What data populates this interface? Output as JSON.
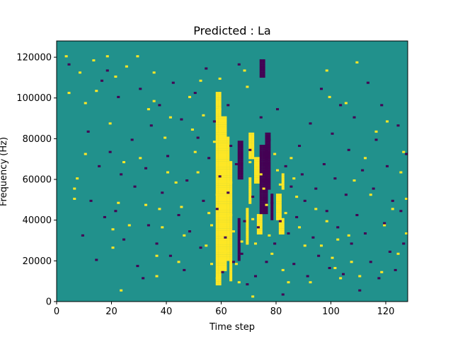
{
  "chart_data": {
    "type": "heatmap",
    "title": "Predicted : La",
    "xlabel": "Time step",
    "ylabel": "Frequency (Hz)",
    "xlim": [
      0,
      128
    ],
    "ylim": [
      0,
      128000
    ],
    "xticks": [
      0,
      20,
      40,
      60,
      80,
      100,
      120
    ],
    "yticks": [
      0,
      20000,
      40000,
      60000,
      80000,
      100000,
      120000
    ],
    "grid": false,
    "legend": "none",
    "n_time_steps": 128,
    "n_bins": 128,
    "levels": [
      -1,
      0,
      1
    ],
    "colors": {
      "-1": "#440154",
      "0": "#21918c",
      "1": "#fde725"
    },
    "background_level": 0,
    "cells": {
      "high": [
        [
          3,
          120
        ],
        [
          4,
          102
        ],
        [
          6,
          55
        ],
        [
          6,
          50
        ],
        [
          7,
          60
        ],
        [
          8,
          112
        ],
        [
          10,
          97
        ],
        [
          10,
          72
        ],
        [
          13,
          118
        ],
        [
          14,
          103
        ],
        [
          18,
          120
        ],
        [
          19,
          87
        ],
        [
          20,
          35
        ],
        [
          20,
          26
        ],
        [
          21,
          110
        ],
        [
          22,
          48
        ],
        [
          23,
          5
        ],
        [
          24,
          68
        ],
        [
          25,
          115
        ],
        [
          26,
          37
        ],
        [
          29,
          120
        ],
        [
          30,
          70
        ],
        [
          32,
          47
        ],
        [
          33,
          94
        ],
        [
          35,
          112
        ],
        [
          35,
          98
        ],
        [
          36,
          22
        ],
        [
          36,
          12
        ],
        [
          37,
          45
        ],
        [
          38,
          36
        ],
        [
          39,
          80
        ],
        [
          40,
          63
        ],
        [
          41,
          90
        ],
        [
          43,
          58
        ],
        [
          44,
          19
        ],
        [
          45,
          46
        ],
        [
          46,
          32
        ],
        [
          48,
          100
        ],
        [
          49,
          84
        ],
        [
          50,
          73
        ],
        [
          51,
          63
        ],
        [
          52,
          108
        ],
        [
          53,
          91
        ],
        [
          54,
          27
        ],
        [
          55,
          43
        ],
        [
          56,
          37
        ],
        [
          56,
          18
        ],
        [
          57,
          78
        ],
        [
          58,
          52
        ],
        [
          58,
          11
        ],
        [
          59,
          109
        ],
        [
          59,
          94
        ],
        [
          59,
          82
        ],
        [
          59,
          62
        ],
        [
          61,
          24
        ],
        [
          63,
          58
        ],
        [
          63,
          42
        ],
        [
          64,
          34
        ],
        [
          65,
          18
        ],
        [
          66,
          9
        ],
        [
          67,
          29
        ],
        [
          68,
          113
        ],
        [
          69,
          105
        ],
        [
          70,
          68
        ],
        [
          71,
          40
        ],
        [
          71,
          2
        ],
        [
          72,
          28
        ],
        [
          74,
          62
        ],
        [
          75,
          55
        ],
        [
          76,
          47
        ],
        [
          77,
          32
        ],
        [
          78,
          23
        ],
        [
          79,
          72
        ],
        [
          80,
          64
        ],
        [
          81,
          57
        ],
        [
          82,
          15
        ],
        [
          83,
          43
        ],
        [
          84,
          9
        ],
        [
          85,
          70
        ],
        [
          86,
          60
        ],
        [
          87,
          51
        ],
        [
          88,
          36
        ],
        [
          90,
          27
        ],
        [
          92,
          9
        ],
        [
          94,
          45
        ],
        [
          96,
          27
        ],
        [
          98,
          113
        ],
        [
          98,
          39
        ],
        [
          99,
          100
        ],
        [
          100,
          21
        ],
        [
          101,
          16
        ],
        [
          102,
          30
        ],
        [
          103,
          11
        ],
        [
          105,
          97
        ],
        [
          106,
          32
        ],
        [
          107,
          19
        ],
        [
          108,
          59
        ],
        [
          109,
          117
        ],
        [
          110,
          12
        ],
        [
          112,
          70
        ],
        [
          114,
          52
        ],
        [
          116,
          83
        ],
        [
          118,
          14
        ],
        [
          119,
          37
        ],
        [
          120,
          88
        ],
        [
          122,
          45
        ],
        [
          124,
          23
        ],
        [
          125,
          63
        ],
        [
          126,
          73
        ],
        [
          127,
          50
        ],
        [
          127,
          33
        ]
      ],
      "low": [
        [
          4,
          116
        ],
        [
          9,
          32
        ],
        [
          11,
          83
        ],
        [
          12,
          49
        ],
        [
          14,
          20
        ],
        [
          15,
          66
        ],
        [
          16,
          108
        ],
        [
          17,
          41
        ],
        [
          18,
          113
        ],
        [
          19,
          73
        ],
        [
          21,
          44
        ],
        [
          22,
          100
        ],
        [
          23,
          62
        ],
        [
          24,
          30
        ],
        [
          27,
          79
        ],
        [
          28,
          56
        ],
        [
          29,
          17
        ],
        [
          30,
          104
        ],
        [
          31,
          11
        ],
        [
          32,
          65
        ],
        [
          33,
          37
        ],
        [
          34,
          86
        ],
        [
          36,
          28
        ],
        [
          37,
          96
        ],
        [
          38,
          53
        ],
        [
          40,
          71
        ],
        [
          41,
          22
        ],
        [
          42,
          107
        ],
        [
          44,
          42
        ],
        [
          45,
          89
        ],
        [
          46,
          15
        ],
        [
          47,
          59
        ],
        [
          48,
          34
        ],
        [
          50,
          102
        ],
        [
          51,
          80
        ],
        [
          52,
          26
        ],
        [
          53,
          49
        ],
        [
          54,
          114
        ],
        [
          55,
          70
        ],
        [
          57,
          88
        ],
        [
          58,
          45
        ],
        [
          59,
          61
        ],
        [
          60,
          14
        ],
        [
          61,
          31
        ],
        [
          62,
          96
        ],
        [
          62,
          53
        ],
        [
          63,
          76
        ],
        [
          64,
          19
        ],
        [
          65,
          67
        ],
        [
          66,
          116
        ],
        [
          67,
          23
        ],
        [
          68,
          39
        ],
        [
          69,
          8
        ],
        [
          70,
          74
        ],
        [
          71,
          51
        ],
        [
          72,
          12
        ],
        [
          73,
          36
        ],
        [
          74,
          90
        ],
        [
          75,
          59
        ],
        [
          76,
          19
        ],
        [
          77,
          79
        ],
        [
          78,
          48
        ],
        [
          79,
          28
        ],
        [
          80,
          94
        ],
        [
          81,
          39
        ],
        [
          82,
          3
        ],
        [
          83,
          66
        ],
        [
          84,
          33
        ],
        [
          85,
          56
        ],
        [
          86,
          18
        ],
        [
          87,
          41
        ],
        [
          88,
          76
        ],
        [
          89,
          62
        ],
        [
          90,
          49
        ],
        [
          91,
          12
        ],
        [
          92,
          87
        ],
        [
          93,
          31
        ],
        [
          94,
          55
        ],
        [
          95,
          22
        ],
        [
          96,
          104
        ],
        [
          97,
          67
        ],
        [
          98,
          44
        ],
        [
          99,
          16
        ],
        [
          100,
          82
        ],
        [
          101,
          60
        ],
        [
          102,
          36
        ],
        [
          103,
          96
        ],
        [
          104,
          13
        ],
        [
          105,
          52
        ],
        [
          106,
          74
        ],
        [
          107,
          28
        ],
        [
          108,
          90
        ],
        [
          109,
          42
        ],
        [
          110,
          5
        ],
        [
          111,
          64
        ],
        [
          112,
          33
        ],
        [
          113,
          107
        ],
        [
          114,
          19
        ],
        [
          115,
          55
        ],
        [
          116,
          79
        ],
        [
          117,
          11
        ],
        [
          118,
          96
        ],
        [
          119,
          38
        ],
        [
          120,
          66
        ],
        [
          121,
          24
        ],
        [
          122,
          49
        ],
        [
          123,
          15
        ],
        [
          124,
          86
        ],
        [
          125,
          44
        ],
        [
          126,
          28
        ],
        [
          127,
          72
        ]
      ]
    },
    "runs": [
      {
        "x": [
          58,
          59
        ],
        "y_from": 8,
        "y_to": 102,
        "level": 1
      },
      {
        "x": [
          60,
          61
        ],
        "y_from": 15,
        "y_to": 90,
        "level": 1
      },
      {
        "x": [
          62
        ],
        "y_from": 20,
        "y_to": 80,
        "level": 1
      },
      {
        "x": [
          63
        ],
        "y_from": 10,
        "y_to": 68,
        "level": 1
      },
      {
        "x": [
          66
        ],
        "y_from": 20,
        "y_to": 40,
        "level": -1
      },
      {
        "x": [
          66,
          67
        ],
        "y_from": 60,
        "y_to": 78,
        "level": -1
      },
      {
        "x": [
          69
        ],
        "y_from": 28,
        "y_to": 45,
        "level": 1
      },
      {
        "x": [
          70,
          71
        ],
        "y_from": 70,
        "y_to": 82,
        "level": 1
      },
      {
        "x": [
          70
        ],
        "y_from": 48,
        "y_to": 60,
        "level": 1
      },
      {
        "x": [
          72,
          73
        ],
        "y_from": 58,
        "y_to": 70,
        "level": 1
      },
      {
        "x": [
          73,
          74
        ],
        "y_from": 33,
        "y_to": 42,
        "level": 1
      },
      {
        "x": [
          74,
          75,
          76
        ],
        "y_from": 43,
        "y_to": 76,
        "level": -1
      },
      {
        "x": [
          74,
          75
        ],
        "y_from": 110,
        "y_to": 118,
        "level": -1
      },
      {
        "x": [
          76,
          77
        ],
        "y_from": 55,
        "y_to": 82,
        "level": -1
      },
      {
        "x": [
          78
        ],
        "y_from": 40,
        "y_to": 52,
        "level": -1
      },
      {
        "x": [
          80,
          81
        ],
        "y_from": 40,
        "y_to": 52,
        "level": 1
      },
      {
        "x": [
          81,
          82
        ],
        "y_from": 33,
        "y_to": 40,
        "level": 1
      },
      {
        "x": [
          82
        ],
        "y_from": 55,
        "y_to": 62,
        "level": 1
      }
    ]
  }
}
